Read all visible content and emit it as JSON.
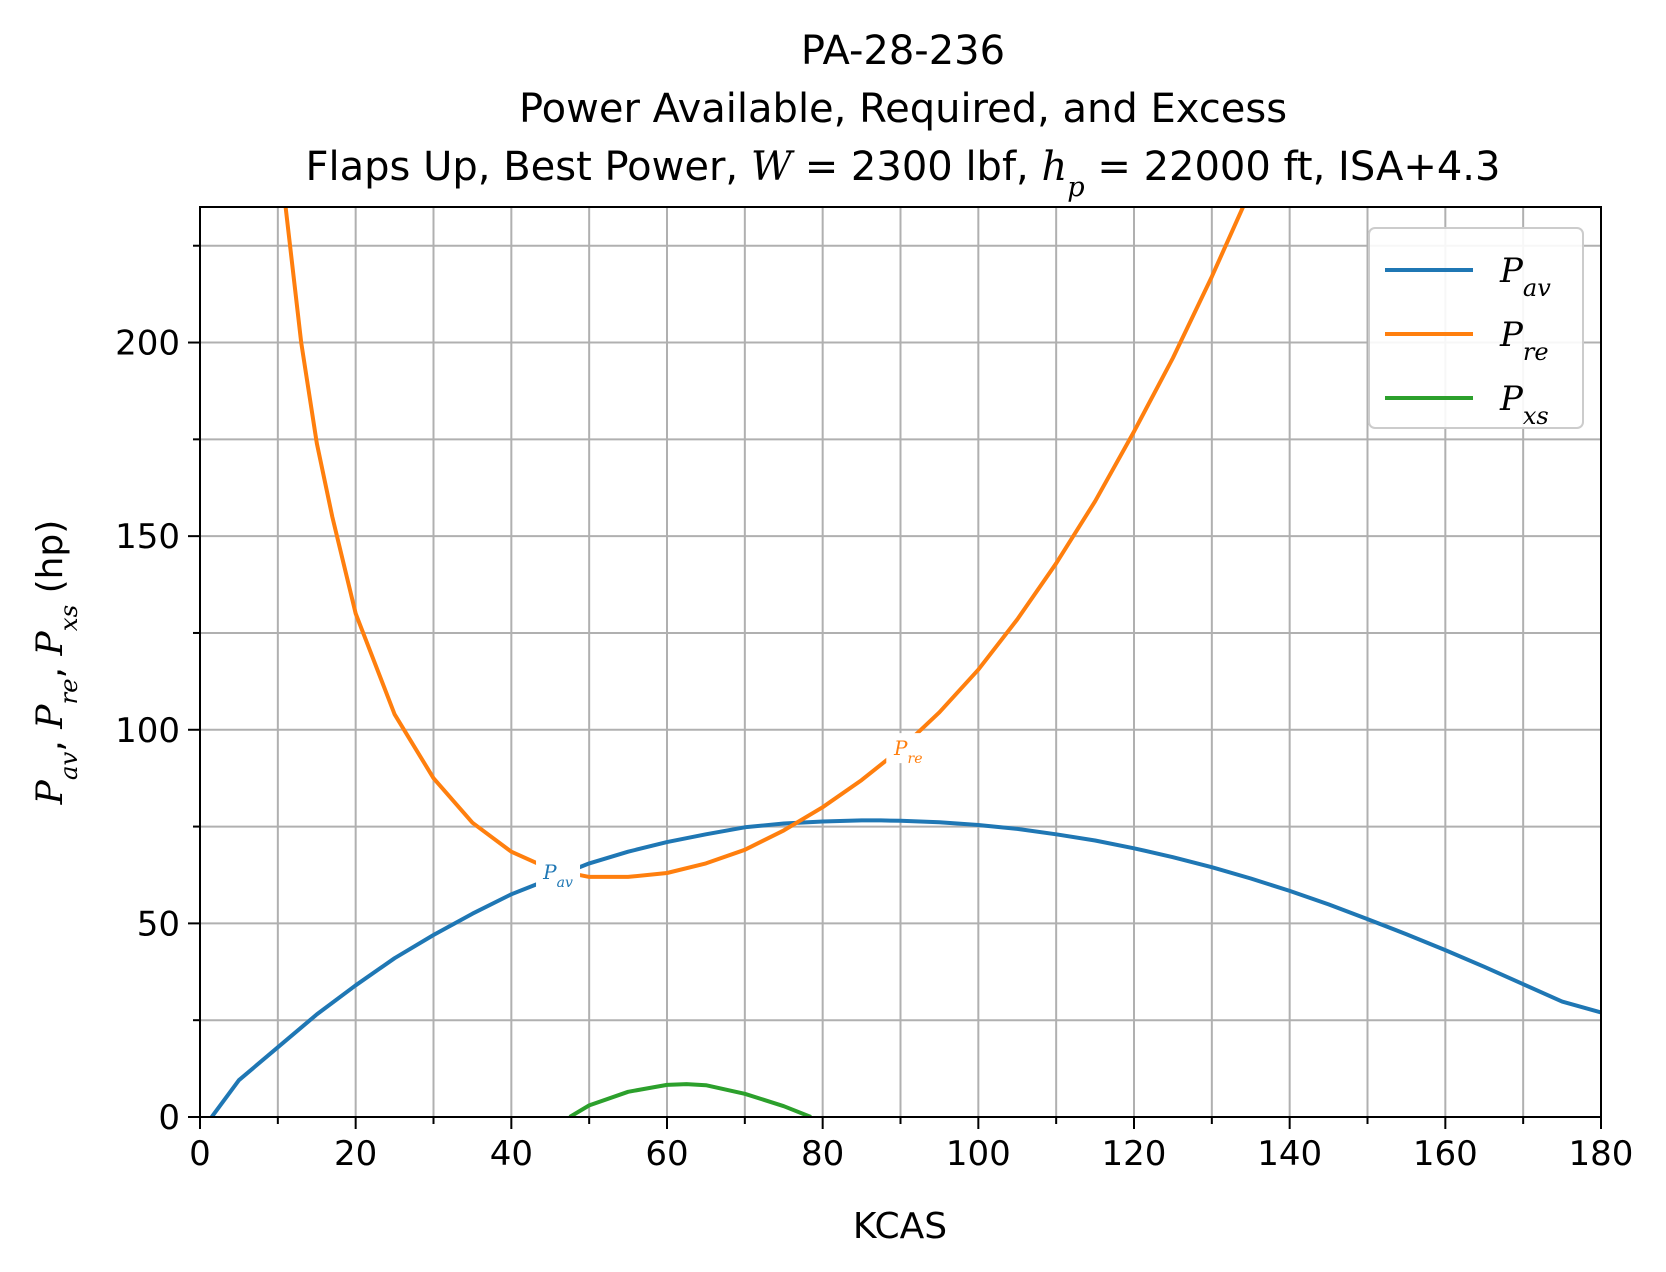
{
  "chart_data": {
    "type": "line",
    "title_lines": [
      "PA-28-236",
      "Power Available, Required, and Excess",
      "Flaps Up, Best Power, W = 2300 lbf, hp = 22000 ft, ISA+4.3"
    ],
    "xlabel": "KCAS",
    "ylabel": "Pav, Pre, Pxs (hp)",
    "xlim": [
      0,
      180
    ],
    "ylim": [
      0,
      235
    ],
    "xticks": [
      0,
      20,
      40,
      60,
      80,
      100,
      120,
      140,
      160,
      180
    ],
    "yticks": [
      0,
      50,
      100,
      150,
      200
    ],
    "x_minor_step": 10,
    "y_minor_step": 25,
    "grid": "major and minor",
    "legend_position": "top-right",
    "series": [
      {
        "name": "Pav",
        "color": "#1f77b4",
        "x": [
          1.5,
          5,
          10,
          15,
          20,
          25,
          30,
          35,
          40,
          45,
          50,
          55,
          60,
          65,
          70,
          75,
          80,
          85,
          87.5,
          90,
          95,
          100,
          105,
          110,
          115,
          120,
          125,
          130,
          135,
          140,
          145,
          150,
          155,
          160,
          165,
          170,
          175,
          180
        ],
        "y": [
          0,
          9.5,
          18,
          26.5,
          34,
          41,
          47,
          52.5,
          57.5,
          61.5,
          65.5,
          68.5,
          71,
          73,
          74.8,
          75.8,
          76.3,
          76.6,
          76.6,
          76.5,
          76.1,
          75.4,
          74.4,
          73,
          71.4,
          69.4,
          67.1,
          64.5,
          61.6,
          58.4,
          54.9,
          51.1,
          47.2,
          43.1,
          38.8,
          34.3,
          29.8,
          27
        ]
      },
      {
        "name": "Pre",
        "color": "#ff7f0e",
        "x": [
          11,
          13,
          15,
          17,
          20,
          25,
          30,
          35,
          40,
          45,
          50,
          55,
          60,
          65,
          70,
          75,
          80,
          85,
          90,
          95,
          100,
          105,
          110,
          115,
          120,
          125,
          130,
          134
        ],
        "y": [
          235,
          200,
          174,
          155,
          130,
          104,
          87.5,
          76,
          68.5,
          64,
          62,
          62,
          63,
          65.5,
          69,
          74,
          80,
          87,
          95,
          104.5,
          115.5,
          128.5,
          143,
          159,
          177,
          196,
          217,
          235
        ]
      },
      {
        "name": "Pxs",
        "color": "#2ca02c",
        "x": [
          47.5,
          50,
          55,
          60,
          62.5,
          65,
          70,
          75,
          78.5
        ],
        "y": [
          0,
          3,
          6.5,
          8.3,
          8.5,
          8.2,
          6,
          2.8,
          0
        ]
      }
    ],
    "inline_labels": [
      {
        "series": "Pav",
        "text": "Pav",
        "x": 46,
        "y": 63
      },
      {
        "series": "Pre",
        "text": "Pre",
        "x": 91,
        "y": 95
      }
    ]
  }
}
